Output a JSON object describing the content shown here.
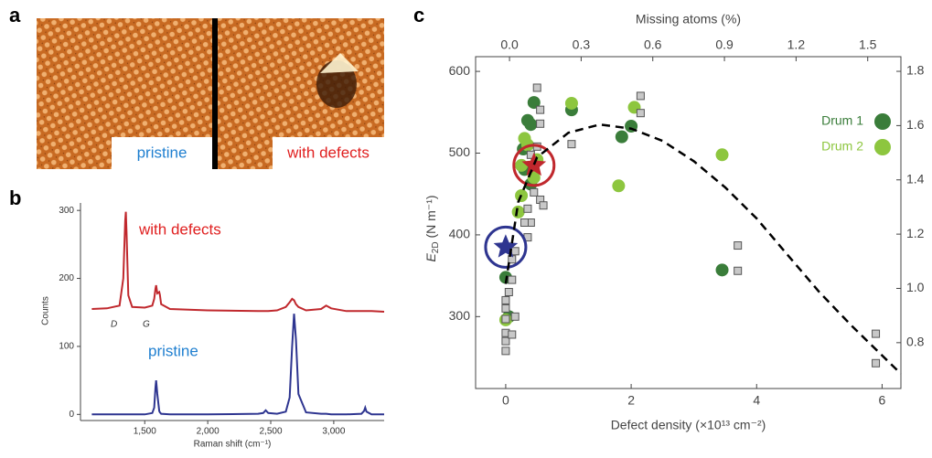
{
  "panel_labels": [
    "a",
    "b",
    "c"
  ],
  "image_panel": {
    "labels": [
      "pristine",
      "with defects"
    ]
  },
  "chart_data": [
    {
      "type": "line",
      "xlabel": "Raman shift (cm⁻¹)",
      "ylabel": "Counts",
      "annotations": [
        "D",
        "G"
      ],
      "x": [
        1080,
        1200,
        1300,
        1330,
        1345,
        1350,
        1355,
        1370,
        1400,
        1500,
        1560,
        1575,
        1585,
        1590,
        1600,
        1615,
        1620,
        1630,
        1700,
        2000,
        2400,
        2440,
        2460,
        2480,
        2550,
        2620,
        2650,
        2670,
        2685,
        2700,
        2720,
        2780,
        2900,
        2940,
        2980,
        3100,
        3220,
        3240,
        3250,
        3260,
        3300,
        3400
      ],
      "series": [
        {
          "name": "with defects",
          "color": "#c0282d",
          "values": [
            155,
            156,
            160,
            200,
            285,
            298,
            270,
            175,
            158,
            157,
            160,
            170,
            185,
            190,
            178,
            180,
            176,
            162,
            155,
            153,
            152,
            152,
            152,
            152,
            153,
            158,
            165,
            170,
            168,
            162,
            158,
            153,
            155,
            160,
            156,
            152,
            152,
            152,
            152,
            152,
            152,
            151
          ]
        },
        {
          "name": "pristine",
          "color": "#2e3590",
          "values": [
            0,
            0,
            0,
            0,
            0,
            0,
            0,
            0,
            0,
            0,
            2,
            10,
            40,
            50,
            30,
            5,
            3,
            1,
            0,
            0,
            1,
            2,
            6,
            2,
            1,
            4,
            25,
            100,
            148,
            110,
            30,
            3,
            1,
            1,
            0,
            0,
            1,
            5,
            10,
            4,
            0,
            0
          ]
        }
      ],
      "xlim": [
        990,
        3400
      ],
      "xticks": [
        {
          "value": 1500,
          "label": "1,500"
        },
        {
          "value": 2000,
          "label": "2,000"
        },
        {
          "value": 2500,
          "label": "2,500"
        },
        {
          "value": 3000,
          "label": "3,000"
        }
      ],
      "ylim": [
        -9,
        311
      ],
      "yticks": [
        0,
        100,
        200,
        300
      ]
    },
    {
      "type": "scatter",
      "xlabel": "Defect density (×10¹³ cm⁻²)",
      "x2label": "Missing atoms (%)",
      "ylabel": {
        "symbol": "E",
        "subscript": "2D",
        "unit": " (N m⁻¹)"
      },
      "xlim": [
        -0.48,
        6.3
      ],
      "xticks": [
        0,
        2,
        4,
        6
      ],
      "x2lim": [
        -0.142,
        1.639
      ],
      "x2ticks": [
        {
          "value": 0,
          "label": "0.0"
        },
        0.3,
        0.6,
        0.9,
        1.2,
        1.5
      ],
      "ylim": [
        212,
        618
      ],
      "yticks": [
        300,
        400,
        500,
        600
      ],
      "y2lim": [
        0.631,
        1.854
      ],
      "y2ticks": [
        0.8,
        {
          "value": 1,
          "label": "1.0"
        },
        1.2,
        1.4,
        1.6,
        1.8
      ],
      "legend": "upper right",
      "series": [
        {
          "name": "Drum 1",
          "color": "#3a7d3a",
          "marker": "circle",
          "x": [
            0.05,
            0.0,
            0.45,
            0.35,
            0.4,
            0.3,
            0.4,
            1.05,
            1.85,
            2.0,
            3.45,
            0.28
          ],
          "values": [
            300,
            348,
            562,
            540,
            535,
            480,
            462,
            553,
            520,
            533,
            357,
            505
          ]
        },
        {
          "name": "Drum 2",
          "color": "#8dc63f",
          "marker": "circle",
          "x": [
            0.0,
            0.25,
            0.2,
            0.3,
            0.35,
            0.45,
            1.05,
            1.8,
            2.05,
            3.45,
            0.5,
            0.25
          ],
          "values": [
            296,
            448,
            428,
            518,
            510,
            470,
            561,
            460,
            556,
            498,
            492,
            485
          ]
        },
        {
          "color": "#c8c8c8",
          "marker": "square",
          "x": [
            0,
            0,
            0,
            0,
            0,
            0,
            0.05,
            0.1,
            0.1,
            0.15,
            0.1,
            0.15,
            0.35,
            0.4,
            0.35,
            0.45,
            0.55,
            0.6,
            0.4,
            0.5,
            0.55,
            0.55,
            0.5,
            1.05,
            2.15,
            2.15,
            3.7,
            3.7,
            5.9,
            5.9,
            0.3
          ],
          "values": [
            258,
            270,
            280,
            297,
            310,
            320,
            330,
            345,
            370,
            380,
            278,
            300,
            397,
            415,
            432,
            452,
            443,
            436,
            498,
            508,
            536,
            553,
            580,
            511,
            570,
            549,
            387,
            356,
            279,
            243,
            415
          ]
        },
        {
          "color": "#2e3590",
          "marker": "star",
          "x": [
            0
          ],
          "values": [
            385
          ]
        },
        {
          "color": "#c0282d",
          "marker": "star",
          "x": [
            0.45
          ],
          "values": [
            485
          ]
        },
        {
          "color": "#000000",
          "marker": "dashed-line",
          "x": [
            0,
            0.2,
            0.5,
            1.0,
            1.5,
            2.0,
            2.5,
            3.0,
            3.5,
            4.0,
            4.5,
            5.0,
            5.5,
            6.3
          ],
          "values": [
            340,
            440,
            495,
            525,
            535,
            530,
            515,
            490,
            458,
            420,
            375,
            330,
            290,
            230
          ]
        }
      ]
    }
  ]
}
